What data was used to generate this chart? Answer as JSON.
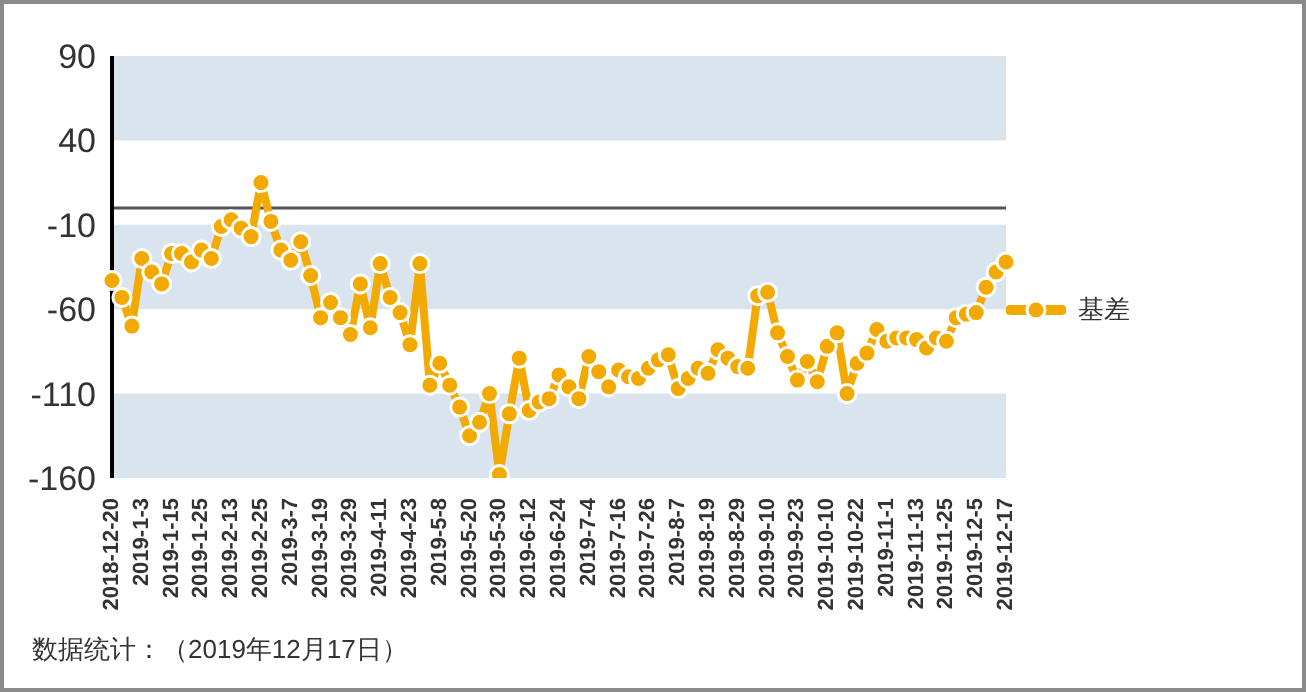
{
  "chart_data": {
    "type": "line",
    "categories": [
      "2018-12-20",
      null,
      null,
      "2019-1-3",
      null,
      null,
      "2019-1-15",
      null,
      null,
      "2019-1-25",
      null,
      null,
      "2019-2-13",
      null,
      null,
      "2019-2-25",
      null,
      null,
      "2019-3-7",
      null,
      null,
      "2019-3-19",
      null,
      null,
      "2019-3-29",
      null,
      null,
      "2019-4-11",
      null,
      null,
      "2019-4-23",
      null,
      null,
      "2019-5-8",
      null,
      null,
      "2019-5-20",
      null,
      null,
      "2019-5-30",
      null,
      null,
      "2019-6-12",
      null,
      null,
      "2019-6-24",
      null,
      null,
      "2019-7-4",
      null,
      null,
      "2019-7-16",
      null,
      null,
      "2019-7-26",
      null,
      null,
      "2019-8-7",
      null,
      null,
      "2019-8-19",
      null,
      null,
      "2019-8-29",
      null,
      null,
      "2019-9-10",
      null,
      null,
      "2019-9-23",
      null,
      null,
      "2019-10-10",
      null,
      null,
      "2019-10-22",
      null,
      null,
      "2019-11-1",
      null,
      null,
      "2019-11-13",
      null,
      null,
      "2019-11-25",
      null,
      null,
      "2019-12-5",
      null,
      null,
      "2019-12-17"
    ],
    "series": [
      {
        "name": "基差",
        "color": "#f2a900",
        "values": [
          -43,
          -53,
          -70,
          -30,
          -38,
          -45,
          -27,
          -27,
          -32,
          -25,
          -30,
          -11,
          -7,
          -12,
          -17,
          15,
          -8,
          -25,
          -31,
          -20,
          -40,
          -65,
          -56,
          -65,
          -75,
          -45,
          -71,
          -33,
          -53,
          -62,
          -81,
          -33,
          -105,
          -92,
          -105,
          -118,
          -135,
          -127,
          -110,
          -158,
          -122,
          -89,
          -120,
          -115,
          -113,
          -99,
          -106,
          -113,
          -88,
          -97,
          -106,
          -96,
          -100,
          -101,
          -95,
          -90,
          -87,
          -107,
          -101,
          -95,
          -98,
          -84,
          -89,
          -94,
          -95,
          -52,
          -50,
          -74,
          -88,
          -102,
          -91,
          -103,
          -82,
          -74,
          -110,
          -92,
          -86,
          -72,
          -79,
          -77,
          -77,
          -78,
          -83,
          -77,
          -79,
          -65,
          -63,
          -62,
          -47,
          -38,
          -32
        ]
      }
    ],
    "ylim": [
      -160,
      90
    ],
    "yticks": [
      90,
      40,
      -10,
      -60,
      -110,
      -160
    ],
    "bands": [
      {
        "axis": "y",
        "from": 40,
        "to": 90,
        "color": "#d9e4ef"
      },
      {
        "axis": "y",
        "from": -60,
        "to": -10,
        "color": "#d9e4ef"
      },
      {
        "axis": "y",
        "from": -160,
        "to": -110,
        "color": "#d9e4ef"
      }
    ],
    "ref_lines": [
      {
        "axis": "y",
        "value": 0,
        "color": "#555555"
      }
    ],
    "marker": "circle",
    "legend": "right",
    "annotations": [
      "数据统计：（2019年12月17日）"
    ]
  }
}
